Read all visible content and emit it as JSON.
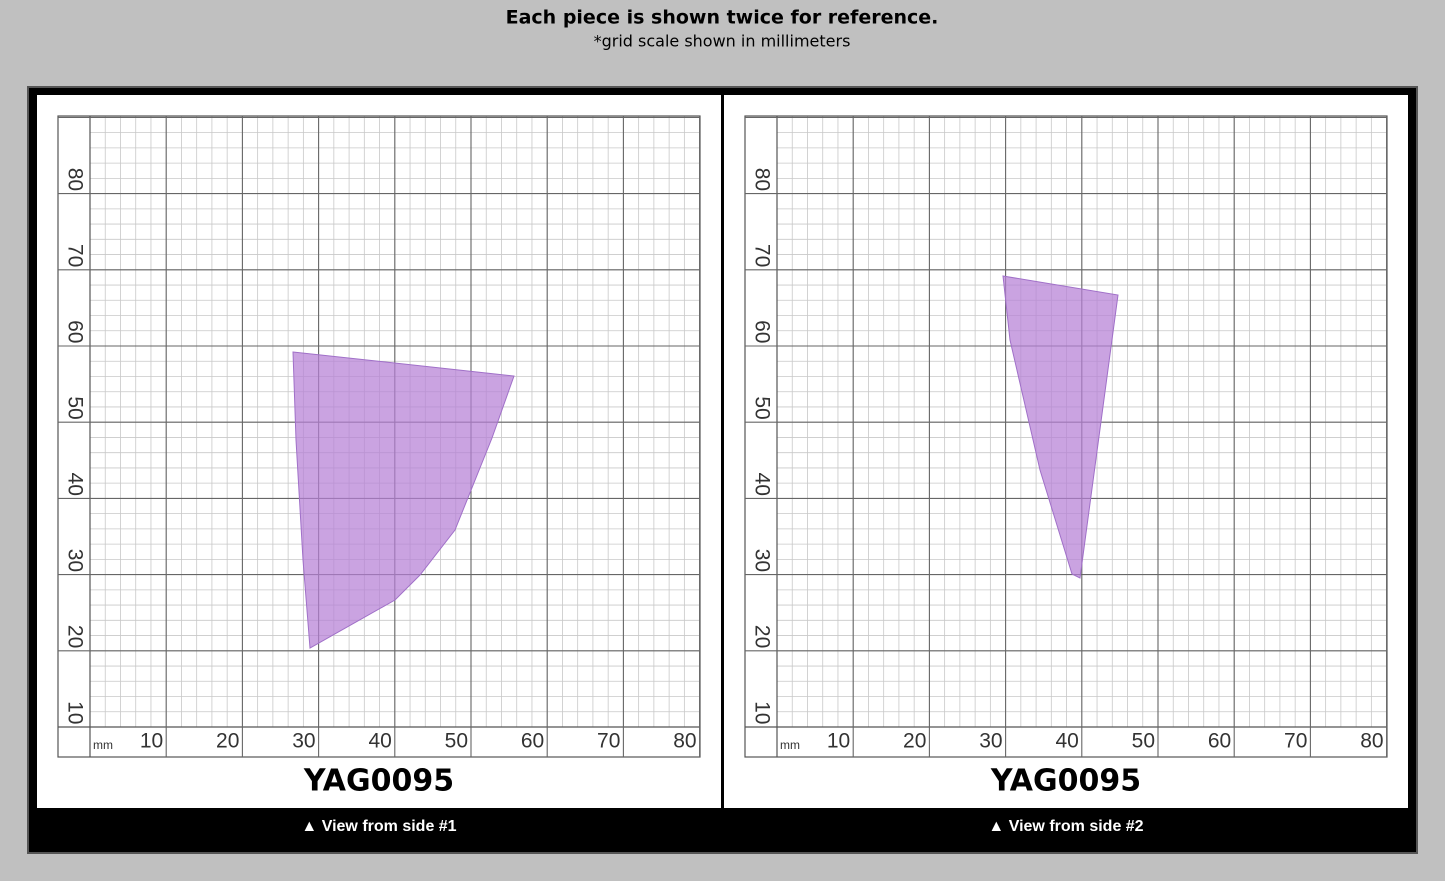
{
  "header": {
    "title": "Each piece is shown twice for reference.",
    "subtitle": "*grid scale shown in millimeters"
  },
  "panels": [
    {
      "unit": "mm",
      "xticks": [
        10,
        20,
        30,
        40,
        50,
        60,
        70,
        80
      ],
      "yticks": [
        10,
        20,
        30,
        40,
        50,
        60,
        70,
        80
      ],
      "label": "YAG0095",
      "caption": "▲ View from side #1"
    },
    {
      "unit": "mm",
      "xticks": [
        10,
        20,
        30,
        40,
        50,
        60,
        70,
        80
      ],
      "yticks": [
        10,
        20,
        30,
        40,
        50,
        60,
        70,
        80
      ],
      "label": "YAG0095",
      "caption": "▲ View from side #2"
    }
  ]
}
